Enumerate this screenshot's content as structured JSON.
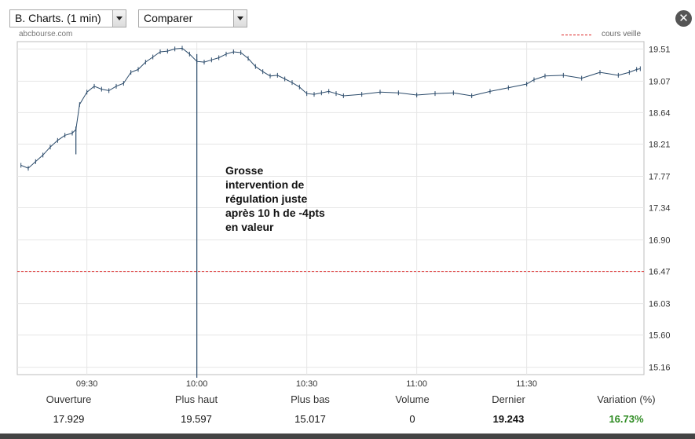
{
  "toolbar": {
    "period_select": "B. Charts. (1 min)",
    "compare_select": "Comparer"
  },
  "close_icon": "close-icon",
  "site_label": "abcbourse.com",
  "legend": {
    "label": "cours veille",
    "color": "#dd2222"
  },
  "annotation": {
    "lines": [
      "Grosse",
      "intervention de",
      "régulation juste",
      "après 10 h de -4pts",
      "en valeur"
    ]
  },
  "stats": {
    "labels": [
      "Ouverture",
      "Plus haut",
      "Plus bas",
      "Volume",
      "Dernier",
      "Variation (%)"
    ],
    "values": [
      "17.929",
      "19.597",
      "15.017",
      "0",
      "19.243",
      "16.73%"
    ],
    "variation_color": "#2e8b22"
  },
  "chart_data": {
    "type": "line",
    "title": "",
    "xlabel": "",
    "ylabel": "",
    "x_ticks": [
      "09:30",
      "10:00",
      "10:30",
      "11:00",
      "11:30"
    ],
    "y_ticks": [
      "19.51",
      "19.07",
      "18.64",
      "18.21",
      "17.77",
      "17.34",
      "16.90",
      "16.47",
      "16.03",
      "15.60",
      "15.16"
    ],
    "ylim": [
      15.06,
      19.61
    ],
    "xlim": [
      "09:11",
      "12:02"
    ],
    "grid": true,
    "reference_line": {
      "name": "cours veille",
      "value": 16.47
    },
    "series": [
      {
        "color": "#2a4a6a",
        "x": [
          "09:12",
          "09:14",
          "09:16",
          "09:18",
          "09:20",
          "09:22",
          "09:24",
          "09:26",
          "09:27",
          "09:28",
          "09:30",
          "09:32",
          "09:34",
          "09:36",
          "09:38",
          "09:40",
          "09:42",
          "09:44",
          "09:46",
          "09:48",
          "09:50",
          "09:52",
          "09:54",
          "09:56",
          "09:58",
          "10:00",
          "10:02",
          "10:04",
          "10:06",
          "10:08",
          "10:10",
          "10:12",
          "10:14",
          "10:16",
          "10:18",
          "10:20",
          "10:22",
          "10:24",
          "10:26",
          "10:28",
          "10:30",
          "10:32",
          "10:34",
          "10:36",
          "10:38",
          "10:40",
          "10:45",
          "10:50",
          "10:55",
          "11:00",
          "11:05",
          "11:10",
          "11:15",
          "11:20",
          "11:25",
          "11:30",
          "11:32",
          "11:35",
          "11:40",
          "11:45",
          "11:50",
          "11:55",
          "11:58",
          "12:00",
          "12:01"
        ],
        "y": [
          17.92,
          17.88,
          17.97,
          18.06,
          18.17,
          18.26,
          18.33,
          18.36,
          18.41,
          18.75,
          18.92,
          19.0,
          18.96,
          18.94,
          19.0,
          19.04,
          19.19,
          19.23,
          19.33,
          19.4,
          19.47,
          19.48,
          19.51,
          19.52,
          19.44,
          19.34,
          19.33,
          19.36,
          19.39,
          19.44,
          19.47,
          19.46,
          19.38,
          19.27,
          19.2,
          19.14,
          19.15,
          19.1,
          19.05,
          18.99,
          18.9,
          18.89,
          18.91,
          18.93,
          18.9,
          18.87,
          18.89,
          18.92,
          18.91,
          18.88,
          18.9,
          18.91,
          18.87,
          18.93,
          18.98,
          19.03,
          19.09,
          19.14,
          19.15,
          19.11,
          19.19,
          19.15,
          19.19,
          19.23,
          19.24
        ]
      }
    ],
    "intraday_spike": {
      "x": "10:00",
      "low": 15.017,
      "high": 19.44
    },
    "early_dip": {
      "x": "09:27",
      "low": 18.07,
      "high": 18.45
    }
  }
}
